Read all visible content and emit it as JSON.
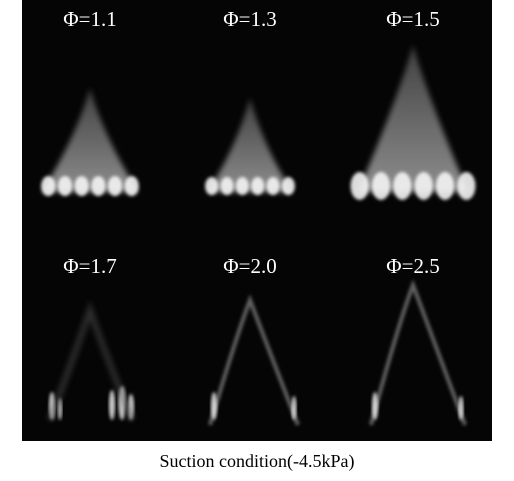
{
  "panels": [
    {
      "label": "Φ=1.1"
    },
    {
      "label": "Φ=1.3"
    },
    {
      "label": "Φ=1.5"
    },
    {
      "label": "Φ=1.7"
    },
    {
      "label": "Φ=2.0"
    },
    {
      "label": "Φ=2.5"
    }
  ],
  "caption": "Suction condition(-4.5kPa)"
}
